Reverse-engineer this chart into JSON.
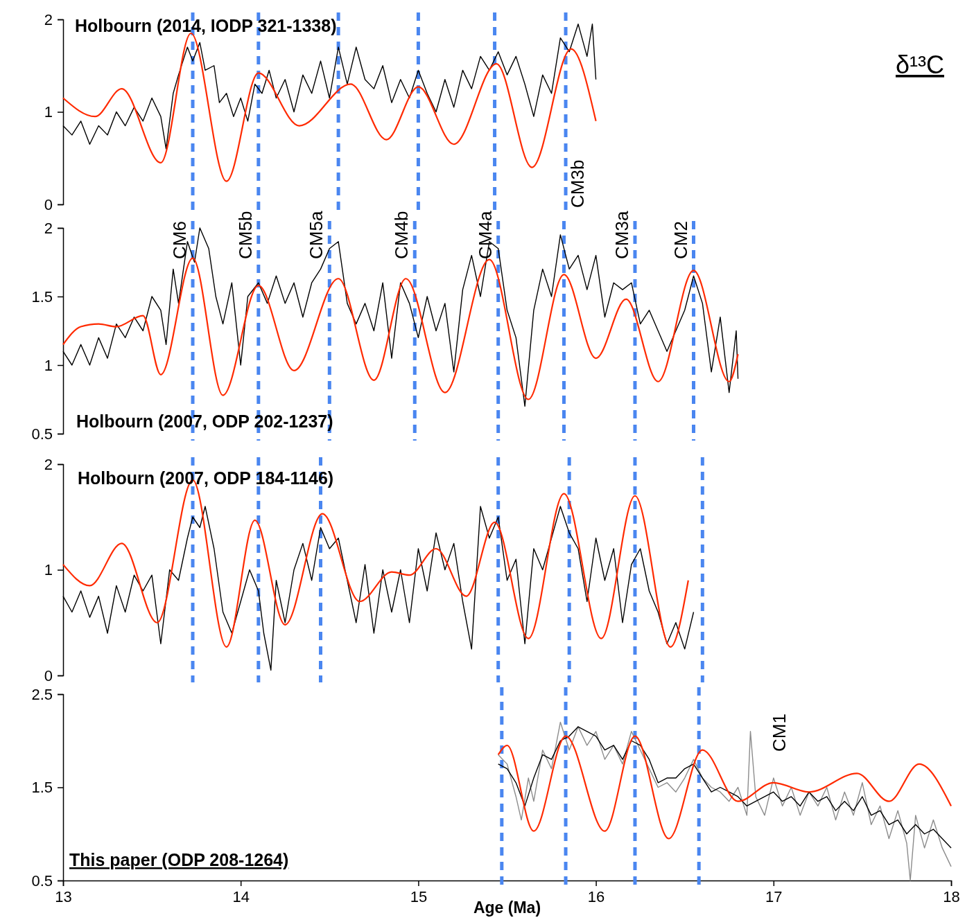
{
  "chart_data": [
    {
      "type": "line",
      "title": "Holbourn (2014, IODP 321-1338)",
      "annotations": [
        "δ¹³C"
      ],
      "xlim": [
        13,
        18
      ],
      "ylim": [
        0,
        2
      ],
      "yticks": [
        0,
        1,
        2
      ],
      "tick_labels": "y",
      "grid": false,
      "marker": "none",
      "line_style": "solid",
      "series": [
        {
          "color": "#000000",
          "x": [
            13.0,
            13.05,
            13.1,
            13.15,
            13.2,
            13.25,
            13.3,
            13.35,
            13.4,
            13.45,
            13.5,
            13.55,
            13.58,
            13.62,
            13.65,
            13.7,
            13.73,
            13.77,
            13.8,
            13.85,
            13.88,
            13.92,
            13.96,
            14.0,
            14.04,
            14.08,
            14.12,
            14.16,
            14.2,
            14.25,
            14.3,
            14.35,
            14.4,
            14.45,
            14.5,
            14.55,
            14.6,
            14.65,
            14.7,
            14.75,
            14.8,
            14.85,
            14.9,
            14.95,
            15.0,
            15.05,
            15.1,
            15.15,
            15.2,
            15.25,
            15.3,
            15.35,
            15.4,
            15.45,
            15.5,
            15.55,
            15.6,
            15.65,
            15.7,
            15.75,
            15.8,
            15.85,
            15.9,
            15.95,
            15.98,
            16.0
          ],
          "values": [
            0.85,
            0.75,
            0.9,
            0.65,
            0.85,
            0.75,
            1.0,
            0.85,
            1.05,
            0.9,
            1.15,
            0.95,
            0.6,
            1.2,
            1.4,
            1.7,
            1.55,
            1.75,
            1.45,
            1.5,
            1.1,
            1.2,
            0.95,
            1.15,
            0.9,
            1.3,
            1.2,
            1.45,
            1.15,
            1.35,
            1.0,
            1.4,
            1.2,
            1.55,
            1.15,
            1.7,
            1.3,
            1.7,
            1.35,
            1.25,
            1.5,
            1.1,
            1.35,
            1.15,
            1.45,
            1.2,
            1.0,
            1.35,
            1.05,
            1.45,
            1.25,
            1.6,
            1.45,
            1.65,
            1.4,
            1.6,
            1.3,
            0.95,
            1.4,
            1.2,
            1.8,
            1.65,
            1.95,
            1.6,
            1.95,
            1.35
          ]
        },
        {
          "color": "#ff2a00",
          "x": [
            13.0,
            13.18,
            13.33,
            13.55,
            13.72,
            13.92,
            14.1,
            14.33,
            14.62,
            14.82,
            15.0,
            15.2,
            15.44,
            15.64,
            15.86,
            16.0
          ],
          "values": [
            1.15,
            0.95,
            1.25,
            0.45,
            1.85,
            0.25,
            1.42,
            0.85,
            1.3,
            0.7,
            1.27,
            0.65,
            1.52,
            0.4,
            1.68,
            0.9
          ]
        }
      ],
      "ref_lines": [
        {
          "axis": "x",
          "value": 13.73,
          "label": null,
          "color": "#4a86f0",
          "line_style": "dashed"
        },
        {
          "axis": "x",
          "value": 14.1,
          "label": null,
          "color": "#4a86f0",
          "line_style": "dashed"
        },
        {
          "axis": "x",
          "value": 14.55,
          "label": null,
          "color": "#4a86f0",
          "line_style": "dashed"
        },
        {
          "axis": "x",
          "value": 15.0,
          "label": null,
          "color": "#4a86f0",
          "line_style": "dashed"
        },
        {
          "axis": "x",
          "value": 15.43,
          "label": null,
          "color": "#4a86f0",
          "line_style": "dashed"
        },
        {
          "axis": "x",
          "value": 15.83,
          "label": "CM3b",
          "color": "#4a86f0",
          "line_style": "dashed"
        }
      ]
    },
    {
      "type": "line",
      "title": "Holbourn (2007, ODP 202-1237)",
      "xlim": [
        13,
        18
      ],
      "ylim": [
        0.5,
        2
      ],
      "yticks": [
        0.5,
        1,
        1.5,
        2
      ],
      "tick_labels": "y",
      "grid": false,
      "marker": "none",
      "line_style": "solid",
      "series": [
        {
          "color": "#000000",
          "x": [
            13.0,
            13.05,
            13.1,
            13.15,
            13.2,
            13.25,
            13.3,
            13.35,
            13.4,
            13.45,
            13.5,
            13.55,
            13.58,
            13.62,
            13.65,
            13.7,
            13.74,
            13.77,
            13.82,
            13.86,
            13.9,
            13.95,
            14.0,
            14.04,
            14.1,
            14.15,
            14.2,
            14.25,
            14.3,
            14.35,
            14.4,
            14.45,
            14.5,
            14.55,
            14.6,
            14.65,
            14.7,
            14.75,
            14.8,
            14.85,
            14.9,
            14.95,
            15.0,
            15.05,
            15.1,
            15.15,
            15.2,
            15.25,
            15.3,
            15.35,
            15.4,
            15.45,
            15.5,
            15.55,
            15.6,
            15.65,
            15.7,
            15.75,
            15.8,
            15.85,
            15.9,
            15.95,
            16.0,
            16.05,
            16.1,
            16.15,
            16.2,
            16.25,
            16.3,
            16.35,
            16.4,
            16.45,
            16.5,
            16.55,
            16.6,
            16.65,
            16.7,
            16.75,
            16.79,
            16.8
          ],
          "values": [
            1.1,
            1.0,
            1.15,
            1.0,
            1.2,
            1.05,
            1.3,
            1.2,
            1.35,
            1.25,
            1.5,
            1.4,
            1.15,
            1.7,
            1.45,
            1.9,
            1.75,
            2.0,
            1.85,
            1.5,
            1.3,
            1.6,
            1.0,
            1.5,
            1.6,
            1.45,
            1.65,
            1.45,
            1.6,
            1.35,
            1.6,
            1.7,
            1.85,
            1.9,
            1.45,
            1.3,
            1.45,
            1.25,
            1.6,
            1.05,
            1.6,
            1.45,
            1.2,
            1.5,
            1.25,
            1.45,
            0.95,
            1.55,
            1.8,
            1.5,
            1.9,
            1.85,
            1.4,
            1.2,
            0.7,
            1.4,
            1.7,
            1.5,
            1.95,
            1.7,
            1.8,
            1.55,
            1.8,
            1.35,
            1.6,
            1.55,
            1.6,
            1.3,
            1.4,
            1.25,
            1.1,
            1.25,
            1.4,
            1.65,
            1.45,
            0.95,
            1.35,
            0.8,
            1.25,
            0.9
          ]
        },
        {
          "color": "#ff2a00",
          "x": [
            13.0,
            13.1,
            13.2,
            13.3,
            13.45,
            13.55,
            13.73,
            13.9,
            14.1,
            14.3,
            14.55,
            14.75,
            14.93,
            15.15,
            15.4,
            15.62,
            15.82,
            16.0,
            16.17,
            16.35,
            16.55,
            16.75,
            16.8
          ],
          "values": [
            1.15,
            1.28,
            1.3,
            1.28,
            1.36,
            0.93,
            1.78,
            0.78,
            1.58,
            0.96,
            1.63,
            0.89,
            1.63,
            0.8,
            1.77,
            0.75,
            1.66,
            1.05,
            1.48,
            0.88,
            1.69,
            0.88,
            1.08
          ]
        }
      ],
      "ref_lines": [
        {
          "axis": "x",
          "value": 13.73,
          "label": "CM6",
          "color": "#4a86f0",
          "line_style": "dashed"
        },
        {
          "axis": "x",
          "value": 14.1,
          "label": "CM5b",
          "color": "#4a86f0",
          "line_style": "dashed"
        },
        {
          "axis": "x",
          "value": 14.5,
          "label": "CM5a",
          "color": "#4a86f0",
          "line_style": "dashed"
        },
        {
          "axis": "x",
          "value": 14.98,
          "label": "CM4b",
          "color": "#4a86f0",
          "line_style": "dashed"
        },
        {
          "axis": "x",
          "value": 15.45,
          "label": "CM4a",
          "color": "#4a86f0",
          "line_style": "dashed"
        },
        {
          "axis": "x",
          "value": 15.82,
          "label": null,
          "color": "#4a86f0",
          "line_style": "dashed"
        },
        {
          "axis": "x",
          "value": 16.22,
          "label": "CM3a",
          "color": "#4a86f0",
          "line_style": "dashed"
        },
        {
          "axis": "x",
          "value": 16.55,
          "label": "CM2",
          "color": "#4a86f0",
          "line_style": "dashed"
        }
      ]
    },
    {
      "type": "line",
      "title": "Holbourn (2007, ODP 184-1146)",
      "xlim": [
        13,
        18
      ],
      "ylim": [
        0,
        2
      ],
      "yticks": [
        0,
        1,
        2
      ],
      "tick_labels": "y",
      "grid": false,
      "marker": "none",
      "line_style": "solid",
      "series": [
        {
          "color": "#000000",
          "x": [
            13.0,
            13.05,
            13.1,
            13.15,
            13.2,
            13.25,
            13.3,
            13.35,
            13.4,
            13.45,
            13.5,
            13.55,
            13.6,
            13.65,
            13.7,
            13.73,
            13.77,
            13.8,
            13.85,
            13.9,
            13.95,
            14.0,
            14.05,
            14.1,
            14.13,
            14.17,
            14.2,
            14.25,
            14.3,
            14.35,
            14.4,
            14.45,
            14.5,
            14.55,
            14.6,
            14.65,
            14.7,
            14.75,
            14.8,
            14.85,
            14.9,
            14.95,
            15.0,
            15.05,
            15.1,
            15.15,
            15.2,
            15.25,
            15.3,
            15.35,
            15.4,
            15.45,
            15.5,
            15.55,
            15.6,
            15.65,
            15.7,
            15.75,
            15.8,
            15.85,
            15.9,
            15.95,
            16.0,
            16.05,
            16.1,
            16.15,
            16.2,
            16.25,
            16.3,
            16.35,
            16.4,
            16.45,
            16.5,
            16.55
          ],
          "values": [
            0.75,
            0.6,
            0.8,
            0.55,
            0.75,
            0.4,
            0.85,
            0.6,
            0.95,
            0.8,
            0.95,
            0.3,
            1.0,
            0.9,
            1.3,
            1.5,
            1.4,
            1.6,
            1.2,
            0.6,
            0.4,
            0.7,
            1.0,
            0.8,
            0.4,
            0.05,
            0.9,
            0.5,
            1.0,
            1.25,
            0.9,
            1.4,
            1.2,
            1.3,
            0.9,
            0.5,
            1.05,
            0.4,
            1.0,
            0.6,
            1.0,
            0.5,
            1.2,
            0.8,
            1.35,
            1.0,
            1.25,
            0.7,
            0.25,
            1.6,
            1.3,
            1.5,
            0.9,
            1.1,
            0.3,
            1.2,
            1.0,
            1.3,
            1.6,
            1.35,
            1.2,
            0.7,
            1.3,
            0.9,
            1.2,
            0.5,
            1.05,
            1.2,
            0.8,
            0.6,
            0.3,
            0.5,
            0.25,
            0.6
          ]
        },
        {
          "color": "#ff2a00",
          "x": [
            13.0,
            13.15,
            13.33,
            13.53,
            13.73,
            13.92,
            14.08,
            14.25,
            14.46,
            14.67,
            14.85,
            14.95,
            15.1,
            15.27,
            15.43,
            15.62,
            15.82,
            16.03,
            16.22,
            16.42,
            16.52
          ],
          "values": [
            1.05,
            0.85,
            1.25,
            0.5,
            1.85,
            0.27,
            1.47,
            0.48,
            1.53,
            0.7,
            0.98,
            0.95,
            1.2,
            0.75,
            1.45,
            0.35,
            1.72,
            0.35,
            1.7,
            0.27,
            0.9
          ]
        }
      ],
      "ref_lines": [
        {
          "axis": "x",
          "value": 13.73,
          "label": null,
          "color": "#4a86f0",
          "line_style": "dashed"
        },
        {
          "axis": "x",
          "value": 14.1,
          "label": null,
          "color": "#4a86f0",
          "line_style": "dashed"
        },
        {
          "axis": "x",
          "value": 14.45,
          "label": null,
          "color": "#4a86f0",
          "line_style": "dashed"
        },
        {
          "axis": "x",
          "value": 15.45,
          "label": null,
          "color": "#4a86f0",
          "line_style": "dashed"
        },
        {
          "axis": "x",
          "value": 15.85,
          "label": null,
          "color": "#4a86f0",
          "line_style": "dashed"
        },
        {
          "axis": "x",
          "value": 16.22,
          "label": null,
          "color": "#4a86f0",
          "line_style": "dashed"
        },
        {
          "axis": "x",
          "value": 16.6,
          "label": null,
          "color": "#4a86f0",
          "line_style": "dashed"
        }
      ]
    },
    {
      "type": "line",
      "title": "This paper (ODP 208-1264)",
      "xlabel": "Age (Ma)",
      "annotations": [
        "CM1"
      ],
      "xlim": [
        13,
        18
      ],
      "xticks": [
        13,
        14,
        15,
        16,
        17,
        18
      ],
      "ylim": [
        0.5,
        2.5
      ],
      "yticks": [
        0.5,
        1.5,
        2.5
      ],
      "grid": false,
      "marker": "none",
      "line_style": "solid",
      "series": [
        {
          "color": "#8c8c8c",
          "x": [
            15.45,
            15.5,
            15.55,
            15.58,
            15.62,
            15.65,
            15.7,
            15.75,
            15.8,
            15.85,
            15.9,
            15.95,
            16.0,
            16.05,
            16.1,
            16.15,
            16.2,
            16.25,
            16.3,
            16.35,
            16.4,
            16.45,
            16.5,
            16.55,
            16.6,
            16.65,
            16.7,
            16.75,
            16.8,
            16.85,
            16.87,
            16.9,
            16.95,
            17.0,
            17.05,
            17.1,
            17.15,
            17.2,
            17.25,
            17.3,
            17.35,
            17.4,
            17.45,
            17.5,
            17.55,
            17.6,
            17.65,
            17.7,
            17.75,
            17.77,
            17.8,
            17.85,
            17.9,
            17.95,
            18.0
          ],
          "values": [
            1.85,
            1.75,
            1.4,
            1.15,
            1.6,
            1.35,
            1.9,
            1.7,
            2.2,
            1.9,
            2.15,
            1.95,
            2.1,
            1.8,
            1.95,
            1.75,
            2.1,
            1.9,
            1.7,
            1.5,
            1.55,
            1.45,
            1.6,
            1.8,
            1.6,
            1.5,
            1.45,
            1.35,
            1.5,
            1.2,
            2.1,
            1.4,
            1.2,
            1.6,
            1.3,
            1.5,
            1.2,
            1.45,
            1.3,
            1.5,
            1.15,
            1.45,
            1.2,
            1.55,
            1.1,
            1.3,
            0.95,
            1.25,
            0.9,
            0.5,
            1.2,
            0.85,
            1.15,
            0.85,
            0.65
          ]
        },
        {
          "color": "#000000",
          "x": [
            15.45,
            15.5,
            15.55,
            15.6,
            15.65,
            15.7,
            15.75,
            15.8,
            15.85,
            15.9,
            15.95,
            16.0,
            16.05,
            16.1,
            16.15,
            16.2,
            16.25,
            16.3,
            16.35,
            16.4,
            16.45,
            16.5,
            16.55,
            16.6,
            16.65,
            16.7,
            16.75,
            16.8,
            16.85,
            16.9,
            16.95,
            17.0,
            17.05,
            17.1,
            17.15,
            17.2,
            17.25,
            17.3,
            17.35,
            17.4,
            17.45,
            17.5,
            17.55,
            17.6,
            17.65,
            17.7,
            17.75,
            17.8,
            17.85,
            17.9,
            17.95,
            18.0
          ],
          "values": [
            1.75,
            1.7,
            1.55,
            1.3,
            1.6,
            1.85,
            1.8,
            2.0,
            2.05,
            2.15,
            2.1,
            2.05,
            1.9,
            1.95,
            1.8,
            2.0,
            1.95,
            1.8,
            1.55,
            1.6,
            1.6,
            1.7,
            1.75,
            1.6,
            1.45,
            1.5,
            1.45,
            1.4,
            1.3,
            1.35,
            1.4,
            1.45,
            1.35,
            1.4,
            1.3,
            1.45,
            1.35,
            1.4,
            1.25,
            1.35,
            1.25,
            1.4,
            1.2,
            1.25,
            1.1,
            1.15,
            1.0,
            1.1,
            1.0,
            1.05,
            0.95,
            0.85
          ]
        },
        {
          "color": "#ff2a00",
          "x": [
            15.45,
            15.5,
            15.65,
            15.83,
            16.05,
            16.22,
            16.41,
            16.6,
            16.8,
            17.0,
            17.2,
            17.47,
            17.65,
            17.82,
            18.0
          ],
          "values": [
            1.85,
            1.95,
            1.03,
            2.05,
            1.03,
            2.05,
            0.95,
            1.9,
            1.35,
            1.55,
            1.45,
            1.65,
            1.35,
            1.75,
            1.3
          ]
        }
      ],
      "ref_lines": [
        {
          "axis": "x",
          "value": 15.47,
          "label": null,
          "color": "#4a86f0",
          "line_style": "dashed"
        },
        {
          "axis": "x",
          "value": 15.83,
          "label": null,
          "color": "#4a86f0",
          "line_style": "dashed"
        },
        {
          "axis": "x",
          "value": 16.22,
          "label": null,
          "color": "#4a86f0",
          "line_style": "dashed"
        },
        {
          "axis": "x",
          "value": 16.58,
          "label": null,
          "color": "#4a86f0",
          "line_style": "dashed"
        }
      ]
    }
  ]
}
